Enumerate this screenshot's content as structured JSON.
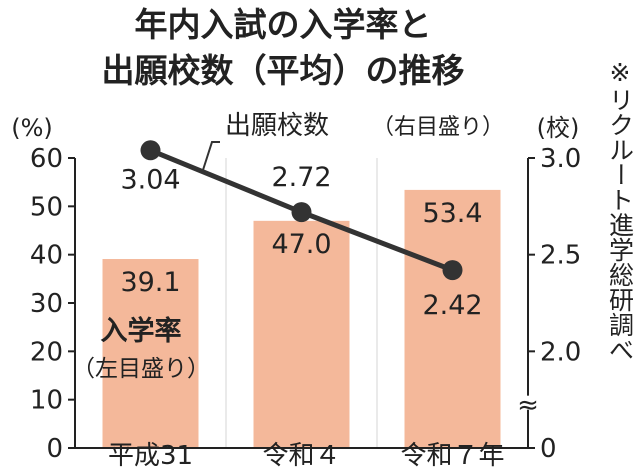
{
  "title_line1": "年内入試の入学率と",
  "title_line2": "出願校数（平均）の推移",
  "source": "※リクルート進学総研調べ",
  "colors": {
    "bar": "#F4B89A",
    "line": "#333333",
    "text": "#222222"
  },
  "chart_data": {
    "type": "bar",
    "categories": [
      "平成31",
      "令和４",
      "令和７年"
    ],
    "left_axis": {
      "unit": "(%)",
      "range": [
        0,
        60
      ],
      "ticks": [
        "0",
        "10",
        "20",
        "30",
        "40",
        "50",
        "60"
      ]
    },
    "right_axis": {
      "unit": "(校)",
      "range_broken": [
        2.0,
        3.0
      ],
      "ticks": [
        "0",
        "2.0",
        "2.5",
        "3.0"
      ],
      "break_mark": "≈"
    },
    "series": [
      {
        "name": "入学率",
        "axis_note": "（左目盛り）",
        "type": "bar",
        "values": [
          39.1,
          47.0,
          53.4
        ],
        "labels": [
          "39.1",
          "47.0",
          "53.4"
        ]
      },
      {
        "name": "出願校数",
        "axis_note": "（右目盛り）",
        "type": "line",
        "values": [
          3.04,
          2.72,
          2.42
        ],
        "labels": [
          "3.04",
          "2.72",
          "2.42"
        ]
      }
    ]
  }
}
